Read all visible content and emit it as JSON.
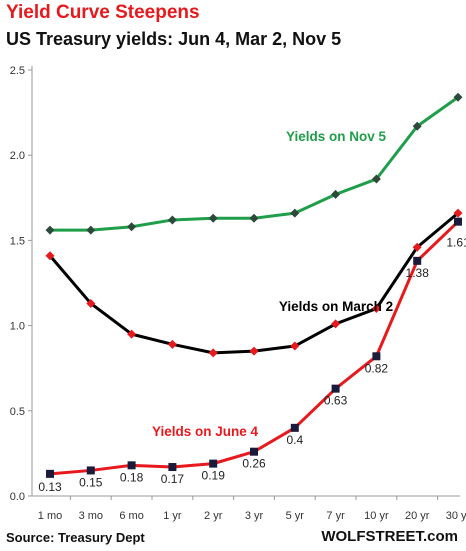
{
  "header": {
    "title": "Yield Curve Steepens",
    "subtitle": "US Treasury yields: Jun 4, Mar 2, Nov 5"
  },
  "footer": {
    "source": "Source: Treasury Dept",
    "brand": "WOLFSTREET.com"
  },
  "chart_data": {
    "type": "line",
    "title": "Yield Curve Steepens",
    "subtitle": "US Treasury yields: Jun 4, Mar 2, Nov 5",
    "xlabel": "",
    "ylabel": "",
    "categories": [
      "1 mo",
      "3 mo",
      "6 mo",
      "1 yr",
      "2 yr",
      "3 yr",
      "5 yr",
      "7 yr",
      "10 yr",
      "20 yr",
      "30 yr"
    ],
    "ylim": [
      0,
      2.5
    ],
    "yticks": [
      0.0,
      0.5,
      1.0,
      1.5,
      2.0,
      2.5
    ],
    "ytick_labels": [
      "0.0",
      "0.5",
      "1.0",
      "1.5",
      "2.0",
      "2.5"
    ],
    "grid": false,
    "series": [
      {
        "name": "Yields on Nov 5",
        "color": "#1f9e4a",
        "marker_color": "#2c4a3a",
        "marker": "diamond",
        "values": [
          1.56,
          1.56,
          1.58,
          1.62,
          1.63,
          1.63,
          1.66,
          1.77,
          1.86,
          2.17,
          2.34
        ],
        "value_labels": []
      },
      {
        "name": "Yields on March 2",
        "color": "#000000",
        "marker_color": "#e8191d",
        "marker": "diamond",
        "values": [
          1.41,
          1.13,
          0.95,
          0.89,
          0.84,
          0.85,
          0.88,
          1.01,
          1.1,
          1.46,
          1.66
        ],
        "value_labels": []
      },
      {
        "name": "Yields on June 4",
        "color": "#e8191d",
        "marker_color": "#1a1a3a",
        "marker": "square",
        "values": [
          0.13,
          0.15,
          0.18,
          0.17,
          0.19,
          0.26,
          0.4,
          0.63,
          0.82,
          1.38,
          1.61
        ],
        "value_labels": [
          "0.13",
          "0.15",
          "0.18",
          "0.17",
          "0.19",
          "0.26",
          "0.4",
          "0.63",
          "0.82",
          "1.38",
          "1.61"
        ]
      }
    ]
  }
}
